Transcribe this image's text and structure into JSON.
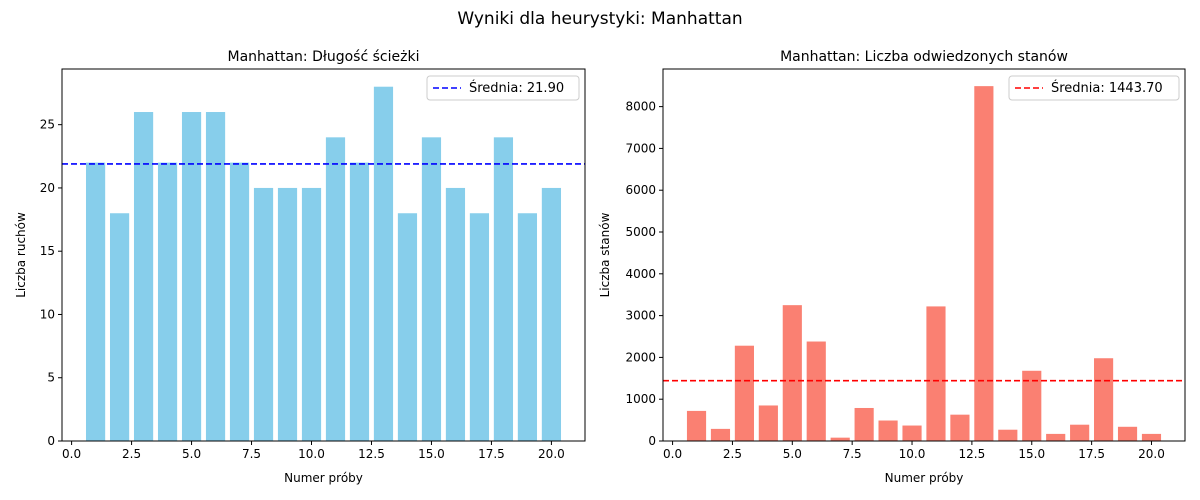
{
  "figure": {
    "suptitle": "Wyniki dla heurystyki: Manhattan"
  },
  "chart_data": [
    {
      "type": "bar",
      "title": "Manhattan: Długość ścieżki",
      "xlabel": "Numer próby",
      "ylabel": "Liczba ruchów",
      "x": [
        1,
        2,
        3,
        4,
        5,
        6,
        7,
        8,
        9,
        10,
        11,
        12,
        13,
        14,
        15,
        16,
        17,
        18,
        19,
        20
      ],
      "values": [
        22,
        18,
        26,
        22,
        26,
        26,
        22,
        20,
        20,
        20,
        24,
        22,
        28,
        18,
        24,
        20,
        18,
        24,
        18,
        20
      ],
      "xlim": [
        -0.4,
        21.4
      ],
      "ylim": [
        0,
        29.4
      ],
      "xticks": [
        0.0,
        2.5,
        5.0,
        7.5,
        10.0,
        12.5,
        15.0,
        17.5,
        20.0
      ],
      "xtick_labels": [
        "0.0",
        "2.5",
        "5.0",
        "7.5",
        "10.0",
        "12.5",
        "15.0",
        "17.5",
        "20.0"
      ],
      "yticks": [
        0,
        5,
        10,
        15,
        20,
        25
      ],
      "ytick_labels": [
        "0",
        "5",
        "10",
        "15",
        "20",
        "25"
      ],
      "bar_color": "#87ceeb",
      "mean_line": {
        "value": 21.9,
        "color": "#0000ff",
        "style": "dashed",
        "label": "Średnia: 21.90"
      },
      "legend": "top-right",
      "grid": false
    },
    {
      "type": "bar",
      "title": "Manhattan: Liczba odwiedzonych stanów",
      "xlabel": "Numer próby",
      "ylabel": "Liczba stanów",
      "x": [
        1,
        2,
        3,
        4,
        5,
        6,
        7,
        8,
        9,
        10,
        11,
        12,
        13,
        14,
        15,
        16,
        17,
        18,
        19,
        20
      ],
      "values": [
        720,
        290,
        2280,
        850,
        3250,
        2380,
        80,
        790,
        490,
        370,
        3220,
        630,
        8490,
        270,
        1680,
        170,
        390,
        1980,
        340,
        170
      ],
      "xlim": [
        -0.4,
        21.4
      ],
      "ylim": [
        0,
        8900
      ],
      "xticks": [
        0.0,
        2.5,
        5.0,
        7.5,
        10.0,
        12.5,
        15.0,
        17.5,
        20.0
      ],
      "xtick_labels": [
        "0.0",
        "2.5",
        "5.0",
        "7.5",
        "10.0",
        "12.5",
        "15.0",
        "17.5",
        "20.0"
      ],
      "yticks": [
        0,
        1000,
        2000,
        3000,
        4000,
        5000,
        6000,
        7000,
        8000
      ],
      "ytick_labels": [
        "0",
        "1000",
        "2000",
        "3000",
        "4000",
        "5000",
        "6000",
        "7000",
        "8000"
      ],
      "bar_color": "#fa8072",
      "mean_line": {
        "value": 1443.7,
        "color": "#ff0000",
        "style": "dashed",
        "label": "Średnia: 1443.70"
      },
      "legend": "top-right",
      "grid": false
    }
  ]
}
